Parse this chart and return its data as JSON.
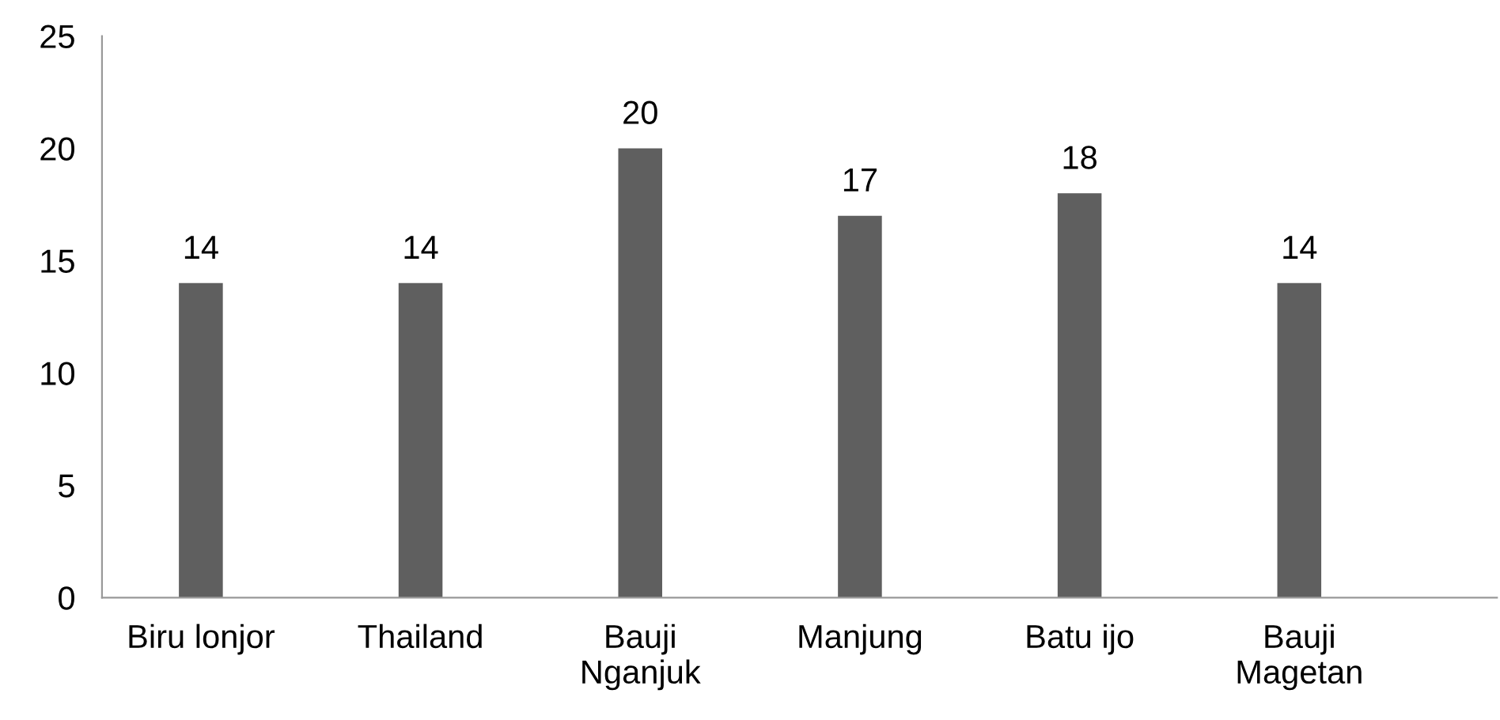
{
  "chart_data": {
    "type": "bar",
    "categories": [
      "Biru lonjor",
      "Thailand",
      "Bauji\nNganjuk",
      "Manjung",
      "Batu ijo",
      "Bauji\nMagetan"
    ],
    "values": [
      14,
      14,
      20,
      17,
      18,
      14
    ],
    "color": "#5f5f5f",
    "ylim": [
      0,
      25
    ],
    "yticks": [
      0,
      5,
      10,
      15,
      20,
      25
    ],
    "grid": false,
    "data_labels": true
  }
}
